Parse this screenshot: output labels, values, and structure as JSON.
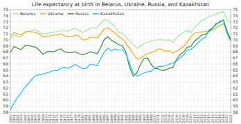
{
  "chart_data": {
    "type": "line",
    "title": "Life expectancy at birth in Belarus, Ukraine, Russia, and Kazakhstan",
    "x": [
      1960,
      1961,
      1962,
      1963,
      1964,
      1965,
      1966,
      1967,
      1968,
      1969,
      1970,
      1971,
      1972,
      1973,
      1974,
      1975,
      1976,
      1977,
      1978,
      1979,
      1980,
      1981,
      1982,
      1983,
      1984,
      1985,
      1986,
      1987,
      1988,
      1989,
      1990,
      1991,
      1992,
      1993,
      1994,
      1995,
      1996,
      1997,
      1998,
      1999,
      2000,
      2001,
      2002,
      2003,
      2004,
      2005,
      2006,
      2007,
      2008,
      2009,
      2010,
      2011,
      2012,
      2013,
      2014,
      2015,
      2016,
      2017,
      2018,
      2019,
      2020,
      2021
    ],
    "series": [
      {
        "name": "Belarus",
        "color": "#90EE90",
        "values": [
          70.2,
          70.8,
          70.6,
          70.5,
          71.2,
          71.4,
          71.5,
          71.6,
          71.3,
          71.0,
          71.0,
          71.2,
          71.2,
          71.4,
          71.5,
          71.5,
          71.4,
          71.7,
          71.9,
          71.6,
          71.2,
          71.5,
          71.9,
          72.0,
          71.9,
          72.8,
          73.3,
          73.2,
          72.7,
          72.2,
          71.2,
          71.1,
          70.5,
          69.8,
          69.3,
          68.6,
          68.9,
          69.4,
          69.6,
          69.8,
          69.9,
          70.1,
          70.0,
          69.9,
          70.0,
          69.6,
          70.3,
          70.9,
          71.2,
          71.6,
          71.2,
          72.0,
          72.6,
          73.2,
          73.5,
          73.9,
          74.0,
          74.3,
          74.5,
          74.7,
          73.4,
          72.7
        ]
      },
      {
        "name": "Ukraine",
        "color": "#FFA500",
        "values": [
          70.6,
          71.2,
          71.0,
          70.8,
          71.3,
          71.4,
          71.3,
          71.2,
          71.0,
          70.5,
          70.5,
          70.7,
          70.8,
          70.8,
          71.0,
          70.7,
          70.5,
          70.5,
          70.8,
          70.6,
          70.0,
          70.0,
          70.4,
          70.4,
          70.3,
          71.0,
          71.8,
          72.0,
          71.5,
          71.2,
          70.5,
          70.2,
          69.5,
          68.6,
          67.7,
          66.9,
          66.9,
          67.4,
          67.7,
          67.9,
          68.1,
          68.5,
          68.4,
          68.1,
          68.2,
          67.8,
          68.1,
          68.5,
          68.9,
          69.6,
          70.5,
          71.1,
          71.2,
          71.3,
          71.4,
          71.4,
          71.6,
          72.0,
          72.4,
          72.7,
          71.5,
          69.9
        ]
      },
      {
        "name": "Russia",
        "color": "#228B22",
        "values": [
          67.9,
          68.9,
          68.6,
          68.4,
          69.0,
          69.1,
          68.9,
          68.8,
          68.3,
          67.6,
          68.0,
          68.1,
          68.0,
          68.3,
          68.5,
          68.0,
          67.9,
          67.9,
          68.0,
          67.7,
          67.5,
          67.7,
          68.0,
          67.9,
          67.7,
          68.7,
          70.1,
          70.5,
          69.9,
          69.6,
          69.2,
          69.0,
          68.0,
          65.5,
          64.0,
          64.5,
          65.9,
          66.9,
          67.0,
          65.9,
          65.3,
          65.2,
          64.9,
          65.0,
          65.3,
          65.4,
          66.7,
          67.6,
          68.0,
          68.8,
          68.9,
          69.8,
          70.2,
          70.8,
          70.9,
          71.4,
          71.9,
          72.7,
          72.9,
          73.3,
          71.5,
          70.1
        ]
      },
      {
        "name": "Kazakhstan",
        "color": "#00BFFF",
        "values": [
          58.4,
          59.5,
          60.5,
          61.2,
          62.1,
          62.8,
          63.5,
          64.1,
          64.2,
          64.3,
          64.5,
          64.7,
          64.9,
          64.9,
          65.3,
          65.4,
          65.3,
          65.6,
          65.9,
          65.6,
          65.2,
          65.3,
          65.9,
          65.9,
          65.7,
          66.9,
          68.0,
          68.6,
          68.2,
          68.5,
          68.3,
          68.3,
          67.7,
          66.1,
          64.5,
          64.0,
          64.2,
          64.5,
          64.7,
          64.8,
          65.3,
          65.6,
          65.6,
          65.7,
          66.0,
          66.1,
          66.5,
          67.0,
          67.5,
          68.3,
          68.4,
          68.9,
          69.5,
          70.1,
          70.4,
          71.6,
          72.0,
          72.5,
          73.1,
          73.2,
          71.0,
          69.8
        ]
      }
    ],
    "xlim": [
      1960,
      2021
    ],
    "xticks": [
      1960,
      1961,
      1962,
      1963,
      1964,
      1965,
      1966,
      1967,
      1968,
      1969,
      1970,
      1971,
      1972,
      1973,
      1974,
      1975,
      1976,
      1977,
      1978,
      1979,
      1980,
      1981,
      1982,
      1983,
      1984,
      1985,
      1986,
      1987,
      1988,
      1989,
      1990,
      1991,
      1992,
      1993,
      1994,
      1995,
      1996,
      1997,
      1998,
      1999,
      2000,
      2001,
      2002,
      2003,
      2004,
      2005,
      2006,
      2007,
      2008,
      2009,
      2010,
      2011,
      2012,
      2013,
      2014,
      2015,
      2016,
      2017,
      2018,
      2019,
      2020,
      2021
    ],
    "ylim": [
      58,
      75
    ],
    "yticks": [
      58,
      59,
      60,
      61,
      62,
      63,
      64,
      65,
      66,
      67,
      68,
      69,
      70,
      71,
      72,
      73,
      74,
      75
    ],
    "y2lim": [
      58,
      75
    ],
    "y2ticks": [
      58,
      59,
      60,
      61,
      62,
      63,
      64,
      65,
      66,
      67,
      68,
      69,
      70,
      71,
      72,
      73,
      74,
      75
    ],
    "grid": true,
    "legend": "upper left"
  }
}
